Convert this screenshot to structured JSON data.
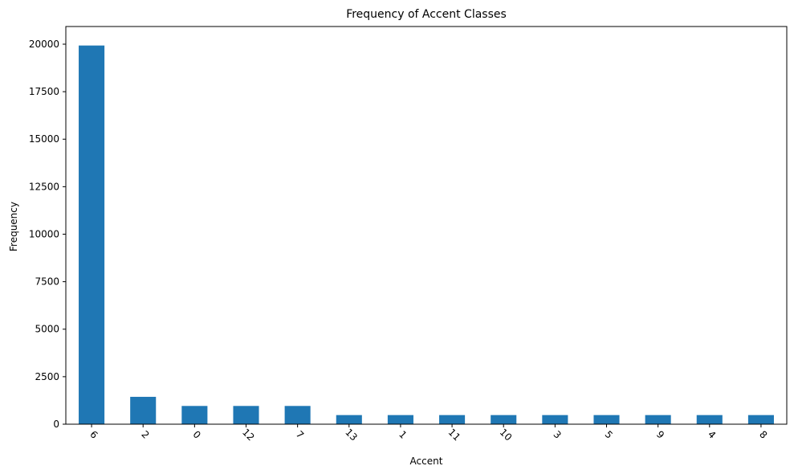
{
  "chart_data": {
    "type": "bar",
    "title": "Frequency of Accent Classes",
    "xlabel": "Accent",
    "ylabel": "Frequency",
    "categories": [
      "6",
      "2",
      "0",
      "12",
      "7",
      "13",
      "1",
      "11",
      "10",
      "3",
      "5",
      "9",
      "4",
      "8"
    ],
    "values": [
      19930,
      1440,
      960,
      960,
      960,
      480,
      480,
      480,
      480,
      480,
      480,
      480,
      480,
      480
    ],
    "ylim": [
      0,
      20930
    ],
    "yticks": [
      0,
      2500,
      5000,
      7500,
      10000,
      12500,
      15000,
      17500,
      20000
    ],
    "ytick_labels": [
      "0",
      "2500",
      "5000",
      "7500",
      "10000",
      "12500",
      "15000",
      "17500",
      "20000"
    ],
    "bar_color": "#1f77b4",
    "grid": false,
    "legend": false
  }
}
